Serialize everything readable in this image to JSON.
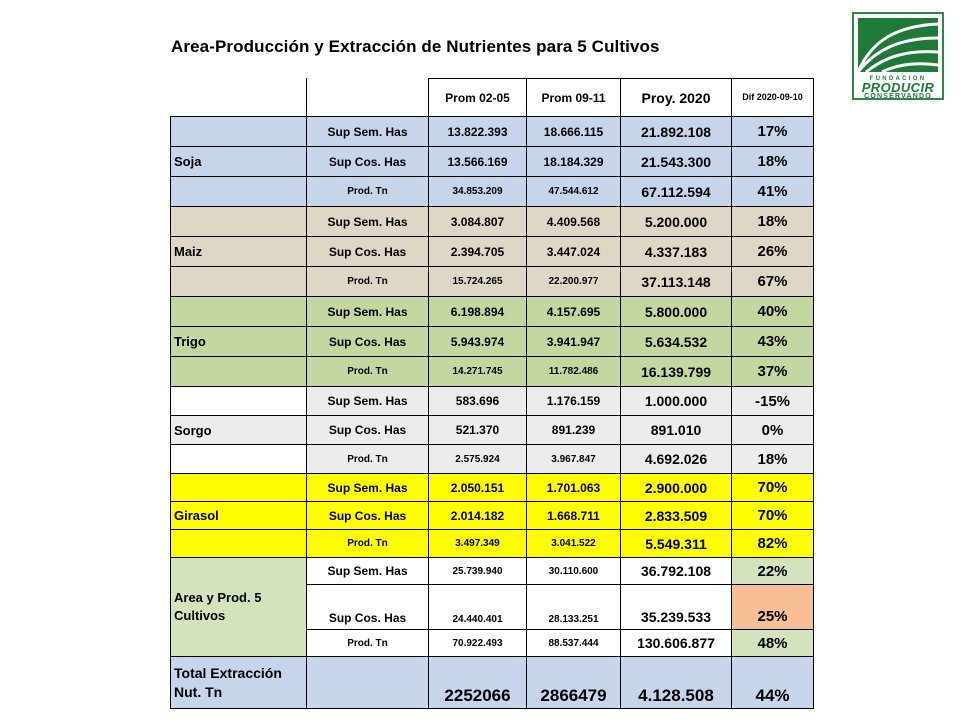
{
  "title": "Area-Producción y Extracción de Nutrientes para 5 Cultivos",
  "logo": {
    "line1": "FUNDACION",
    "line2": "PRODUCIR",
    "line3": "CONSERVANDO"
  },
  "headers": {
    "prom0205": "Prom 02-05",
    "prom0911": "Prom 09-11",
    "proy2020": "Proy. 2020",
    "dif": "Dif 2020-09-10"
  },
  "crops": [
    {
      "name": "Soja",
      "rows": [
        {
          "label": "Sup Sem. Has",
          "p1": "13.822.393",
          "p2": "18.666.115",
          "proy": "21.892.108",
          "dif": "17%"
        },
        {
          "label": "Sup Cos. Has",
          "p1": "13.566.169",
          "p2": "18.184.329",
          "proy": "21.543.300",
          "dif": "18%"
        },
        {
          "label": "Prod. Tn",
          "p1": "34.853.209",
          "p2": "47.544.612",
          "proy": "67.112.594",
          "dif": "41%"
        }
      ]
    },
    {
      "name": "Maiz",
      "rows": [
        {
          "label": "Sup Sem. Has",
          "p1": "3.084.807",
          "p2": "4.409.568",
          "proy": "5.200.000",
          "dif": "18%"
        },
        {
          "label": "Sup Cos. Has",
          "p1": "2.394.705",
          "p2": "3.447.024",
          "proy": "4.337.183",
          "dif": "26%"
        },
        {
          "label": "Prod. Tn",
          "p1": "15.724.265",
          "p2": "22.200.977",
          "proy": "37.113.148",
          "dif": "67%"
        }
      ]
    },
    {
      "name": "Trigo",
      "rows": [
        {
          "label": "Sup Sem. Has",
          "p1": "6.198.894",
          "p2": "4.157.695",
          "proy": "5.800.000",
          "dif": "40%"
        },
        {
          "label": "Sup Cos. Has",
          "p1": "5.943.974",
          "p2": "3.941.947",
          "proy": "5.634.532",
          "dif": "43%"
        },
        {
          "label": "Prod. Tn",
          "p1": "14.271.745",
          "p2": "11.782.486",
          "proy": "16.139.799",
          "dif": "37%"
        }
      ]
    },
    {
      "name": "Sorgo",
      "rows": [
        {
          "label": "Sup Sem. Has",
          "p1": "583.696",
          "p2": "1.176.159",
          "proy": "1.000.000",
          "dif": "-15%"
        },
        {
          "label": "Sup Cos. Has",
          "p1": "521.370",
          "p2": "891.239",
          "proy": "891.010",
          "dif": "0%"
        },
        {
          "label": "Prod. Tn",
          "p1": "2.575.924",
          "p2": "3.967.847",
          "proy": "4.692.026",
          "dif": "18%"
        }
      ]
    },
    {
      "name": "Girasol",
      "rows": [
        {
          "label": "Sup Sem. Has",
          "p1": "2.050.151",
          "p2": "1.701.063",
          "proy": "2.900.000",
          "dif": "70%"
        },
        {
          "label": "Sup Cos. Has",
          "p1": "2.014.182",
          "p2": "1.668.711",
          "proy": "2.833.509",
          "dif": "70%"
        },
        {
          "label": "Prod. Tn",
          "p1": "3.497.349",
          "p2": "3.041.522",
          "proy": "5.549.311",
          "dif": "82%"
        }
      ]
    },
    {
      "name": "Area y Prod. 5 Cultivos",
      "rows": [
        {
          "label": "Sup Sem. Has",
          "p1": "25.739.940",
          "p2": "30.110.600",
          "proy": "36.792.108",
          "dif": "22%"
        },
        {
          "label": "Sup Cos. Has",
          "p1": "24.440.401",
          "p2": "28.133.251",
          "proy": "35.239.533",
          "dif": "25%"
        },
        {
          "label": "Prod. Tn",
          "p1": "70.922.493",
          "p2": "88.537.444",
          "proy": "130.606.877",
          "dif": "48%"
        }
      ]
    }
  ],
  "total": {
    "name": "Total Extracción Nut. Tn",
    "p1": "2252066",
    "p2": "2866479",
    "proy": "4.128.508",
    "dif": "44%"
  }
}
